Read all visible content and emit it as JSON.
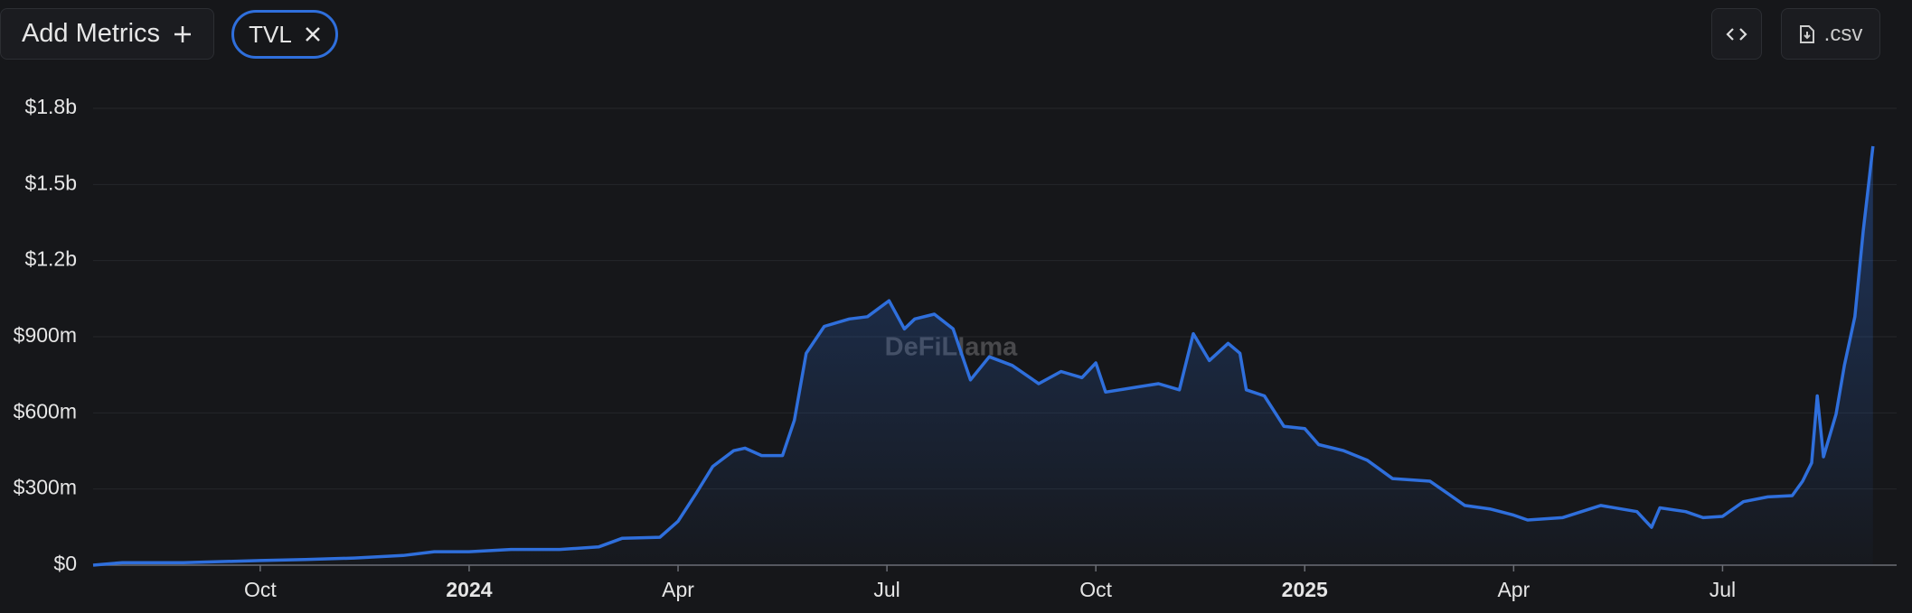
{
  "toolbar": {
    "add_metrics": "Add Metrics",
    "csv": ".csv"
  },
  "watermark": "DeFiLlama",
  "chart_data": {
    "type": "line",
    "series": [
      {
        "name": "TVL",
        "color": "#2f6fdc",
        "values": [
          0,
          10,
          10,
          18,
          22,
          28,
          38,
          53,
          53,
          62,
          62,
          72,
          106,
          110,
          173,
          283,
          389,
          451,
          461,
          432,
          432,
          571,
          835,
          941,
          970,
          979,
          1042,
          931,
          970,
          989,
          931,
          730,
          821,
          787,
          715,
          763,
          739,
          797,
          682,
          701,
          715,
          691,
          912,
          806,
          874,
          835,
          691,
          667,
          547,
          538,
          475,
          451,
          413,
          341,
          331,
          283,
          235,
          221,
          197,
          178,
          187,
          235,
          211,
          149,
          226,
          211,
          187,
          192,
          250,
          269,
          274,
          331,
          403,
          667,
          427,
          595,
          787,
          979,
          1315,
          1507,
          1651
        ]
      }
    ],
    "x": [
      -2.4,
      -1.98,
      -1.1,
      0,
      0.65,
      1.35,
      2.05,
      2.5,
      3,
      3.6,
      4.3,
      4.86,
      5.2,
      5.74,
      6,
      6.26,
      6.5,
      6.8,
      6.96,
      7.2,
      7.5,
      7.67,
      7.84,
      8.1,
      8.46,
      8.72,
      9.03,
      9.25,
      9.4,
      9.68,
      9.95,
      10.2,
      10.47,
      10.8,
      11.18,
      11.5,
      11.8,
      12,
      12.14,
      12.58,
      12.9,
      13.2,
      13.4,
      13.63,
      13.9,
      14.07,
      14.16,
      14.42,
      14.7,
      15,
      15.2,
      15.56,
      15.9,
      16.26,
      16.8,
      17.05,
      17.3,
      17.67,
      18,
      18.2,
      18.7,
      19.25,
      19.77,
      19.98,
      20.1,
      20.47,
      20.72,
      21,
      21.3,
      21.65,
      22,
      22.15,
      22.28,
      22.36,
      22.45,
      22.63,
      22.75,
      22.9,
      23.02,
      23.1,
      23.16
    ],
    "xlim": [
      -2.4,
      23.5
    ],
    "xticks": [
      {
        "value": 0,
        "label": "Oct"
      },
      {
        "value": 3,
        "label": "2024",
        "bold": true
      },
      {
        "value": 6,
        "label": "Apr"
      },
      {
        "value": 9,
        "label": "Jul"
      },
      {
        "value": 12,
        "label": "Oct"
      },
      {
        "value": 15,
        "label": "2025",
        "bold": true
      },
      {
        "value": 18,
        "label": "Apr"
      },
      {
        "value": 21,
        "label": "Jul"
      }
    ],
    "ylim": [
      0,
      1800
    ],
    "yticks": [
      {
        "value": 0,
        "label": "$0"
      },
      {
        "value": 300,
        "label": "$300m"
      },
      {
        "value": 600,
        "label": "$600m"
      },
      {
        "value": 900,
        "label": "$900m"
      },
      {
        "value": 1200,
        "label": "$1.2b"
      },
      {
        "value": 1500,
        "label": "$1.5b"
      },
      {
        "value": 1800,
        "label": "$1.8b"
      }
    ],
    "grid": true
  }
}
